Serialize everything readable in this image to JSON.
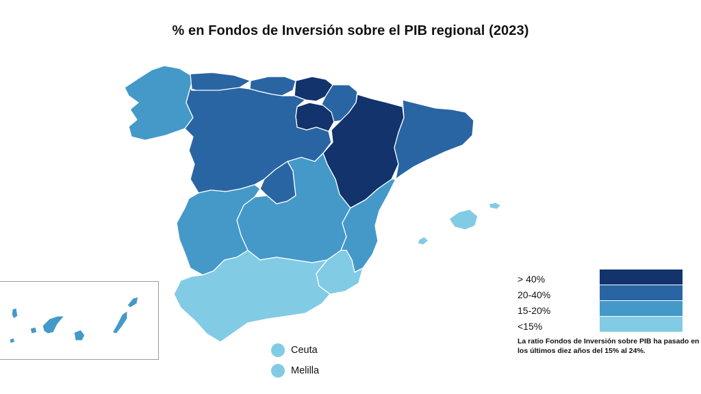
{
  "title": "% en Fondos de Inversión sobre el PIB regional (2023)",
  "legend": {
    "items": [
      {
        "label": "> 40%",
        "color": "#12336b"
      },
      {
        "label": "20-40%",
        "color": "#2a65a3"
      },
      {
        "label": "15-20%",
        "color": "#4499c9"
      },
      {
        "label": "<15%",
        "color": "#82cbe5"
      }
    ]
  },
  "note": "La ratio Fondos de Inversión sobre PIB ha pasado en los últimos diez años del 15% al 24%.",
  "cities": [
    {
      "name": "Ceuta",
      "category": "<15%"
    },
    {
      "name": "Melilla",
      "category": "<15%"
    }
  ],
  "regions": [
    {
      "name": "Galicia",
      "category": "15-20%"
    },
    {
      "name": "Asturias",
      "category": "20-40%"
    },
    {
      "name": "Cantabria",
      "category": "20-40%"
    },
    {
      "name": "País Vasco",
      "category": "> 40%"
    },
    {
      "name": "Navarra",
      "category": "20-40%"
    },
    {
      "name": "La Rioja",
      "category": "> 40%"
    },
    {
      "name": "Aragón",
      "category": "> 40%"
    },
    {
      "name": "Cataluña",
      "category": "20-40%"
    },
    {
      "name": "Castilla y León",
      "category": "20-40%"
    },
    {
      "name": "Madrid",
      "category": "20-40%"
    },
    {
      "name": "Castilla-La Mancha",
      "category": "15-20%"
    },
    {
      "name": "Extremadura",
      "category": "15-20%"
    },
    {
      "name": "Comunidad Valenciana",
      "category": "15-20%"
    },
    {
      "name": "Murcia",
      "category": "<15%"
    },
    {
      "name": "Andalucía",
      "category": "<15%"
    },
    {
      "name": "Islas Baleares",
      "category": "<15%"
    },
    {
      "name": "Canarias",
      "category": "15-20%"
    }
  ]
}
